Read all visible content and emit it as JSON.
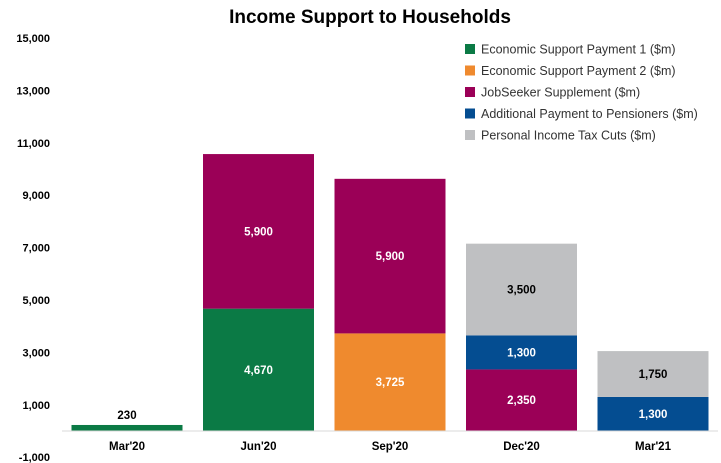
{
  "chart_data": {
    "type": "bar",
    "stacked": true,
    "title": "Income Support to Households",
    "xlabel": "",
    "ylabel": "",
    "ylim": [
      -1000,
      15000
    ],
    "yticks": [
      "-1,000",
      "1,000",
      "3,000",
      "5,000",
      "7,000",
      "9,000",
      "11,000",
      "13,000",
      "15,000"
    ],
    "ytick_values": [
      -1000,
      1000,
      3000,
      5000,
      7000,
      9000,
      11000,
      13000,
      15000
    ],
    "categories": [
      "Mar'20",
      "Jun'20",
      "Sep'20",
      "Dec'20",
      "Mar'21"
    ],
    "grid": false,
    "legend_position": "top-right",
    "series": [
      {
        "name": "Economic Support Payment 1 ($m)",
        "color": "#0b7a45",
        "label_color": "#ffffff",
        "values": [
          230,
          4670,
          0,
          0,
          0
        ],
        "labels": [
          "230",
          "4,670",
          "",
          "",
          ""
        ]
      },
      {
        "name": "Economic Support Payment 2 ($m)",
        "color": "#ef8a2e",
        "label_color": "#ffffff",
        "values": [
          0,
          0,
          3725,
          0,
          0
        ],
        "labels": [
          "",
          "",
          "3,725",
          "",
          ""
        ]
      },
      {
        "name": "JobSeeker Supplement ($m)",
        "color": "#9b0057",
        "label_color": "#ffffff",
        "values": [
          0,
          5900,
          5900,
          2350,
          0
        ],
        "labels": [
          "",
          "5,900",
          "5,900",
          "2,350",
          ""
        ]
      },
      {
        "name": "Additional Payment to Pensioners ($m)",
        "color": "#044d91",
        "label_color": "#ffffff",
        "values": [
          0,
          0,
          0,
          1300,
          1300
        ],
        "labels": [
          "",
          "",
          "",
          "1,300",
          "1,300"
        ]
      },
      {
        "name": "Personal Income Tax Cuts ($m)",
        "color": "#bfc0c2",
        "label_color": "#000000",
        "values": [
          0,
          0,
          0,
          3500,
          1750
        ],
        "labels": [
          "",
          "",
          "",
          "3,500",
          "1,750"
        ]
      }
    ]
  }
}
